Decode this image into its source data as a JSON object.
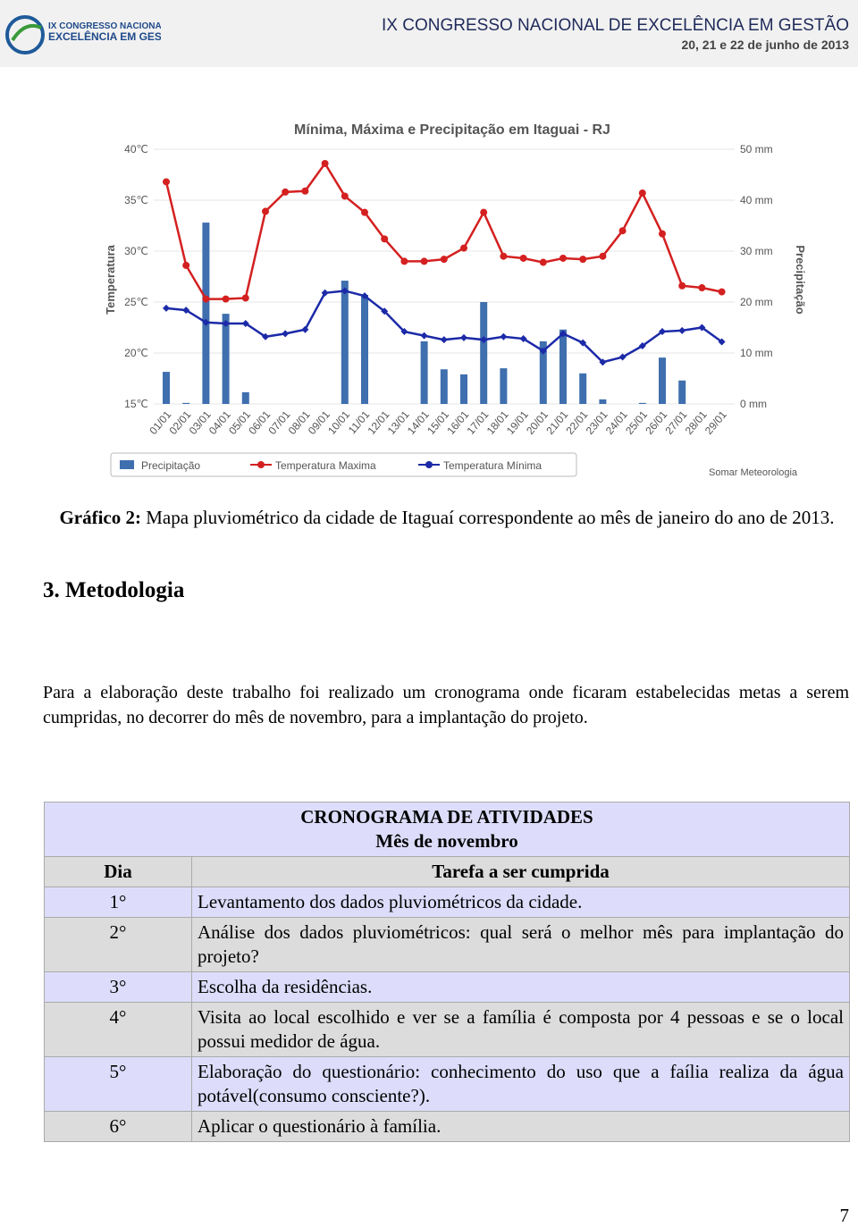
{
  "header": {
    "logo_lines": [
      "IX CONGRESSO NACIONAL DE",
      "EXCELÊNCIA EM GESTÃO"
    ],
    "title": "IX CONGRESSO NACIONAL DE EXCELÊNCIA EM GESTÃO",
    "date": "20, 21 e 22 de junho de 2013"
  },
  "chart_data": {
    "type": "bar-line",
    "title": "Mínima, Máxima e Precipitação em Itaguai - RJ",
    "y_label": "Temperatura",
    "y2_label": "Precipitação",
    "credit": "Somar Meteorologia",
    "categories": [
      "01/01",
      "02/01",
      "03/01",
      "04/01",
      "05/01",
      "06/01",
      "07/01",
      "08/01",
      "09/01",
      "10/01",
      "11/01",
      "12/01",
      "13/01",
      "14/01",
      "15/01",
      "16/01",
      "17/01",
      "18/01",
      "19/01",
      "20/01",
      "21/01",
      "22/01",
      "23/01",
      "24/01",
      "25/01",
      "26/01",
      "27/01",
      "28/01",
      "29/01"
    ],
    "series": [
      {
        "name": "Precipitação",
        "type": "bar",
        "axis": "y2",
        "color": "#3f6fae",
        "values": [
          6.3,
          0.2,
          35.6,
          17.7,
          2.3,
          0,
          0,
          0,
          0,
          24.2,
          21.4,
          0,
          0,
          12.3,
          6.8,
          5.8,
          20,
          7,
          0,
          12.3,
          14.6,
          6,
          0.9,
          0,
          0.2,
          9.1,
          4.6,
          0,
          0
        ]
      },
      {
        "name": "Temperatura Maxima",
        "type": "line",
        "color": "#d42020",
        "values": [
          36.8,
          28.6,
          25.3,
          25.3,
          25.4,
          33.9,
          35.8,
          35.9,
          38.6,
          35.4,
          33.8,
          31.2,
          29,
          29,
          29.2,
          30.3,
          33.8,
          29.5,
          29.3,
          28.9,
          29.3,
          29.2,
          29.5,
          32,
          35.7,
          31.7,
          26.6,
          26.4,
          26
        ]
      },
      {
        "name": "Temperatura Mínima",
        "type": "line",
        "color": "#1c2aa8",
        "values": [
          24.4,
          24.2,
          23,
          22.9,
          22.9,
          21.6,
          21.9,
          22.3,
          25.9,
          26.1,
          25.6,
          24.1,
          22.1,
          21.7,
          21.3,
          21.5,
          21.3,
          21.6,
          21.4,
          20.2,
          21.9,
          21,
          19.1,
          19.6,
          20.7,
          22.1,
          22.2,
          22.5,
          21.1
        ]
      }
    ],
    "ylim": [
      15,
      40
    ],
    "yticks": [
      {
        "value": 15,
        "label": "15℃"
      },
      {
        "value": 20,
        "label": "20℃"
      },
      {
        "value": 25,
        "label": "25℃"
      },
      {
        "value": 30,
        "label": "30℃"
      },
      {
        "value": 35,
        "label": "35℃"
      },
      {
        "value": 40,
        "label": "40℃"
      }
    ],
    "y2lim": [
      0,
      50
    ],
    "y2ticks": [
      {
        "value": 0,
        "label": "0 mm"
      },
      {
        "value": 10,
        "label": "10 mm"
      },
      {
        "value": 20,
        "label": "20 mm"
      },
      {
        "value": 30,
        "label": "30 mm"
      },
      {
        "value": 40,
        "label": "40 mm"
      },
      {
        "value": 50,
        "label": "50 mm"
      }
    ],
    "grid": true,
    "legend": "bottom"
  },
  "caption": {
    "label": "Gráfico 2:",
    "text": "Mapa pluviométrico da cidade de Itaguaí correspondente ao mês de janeiro do ano de 2013."
  },
  "section": {
    "heading": "3. Metodologia",
    "paragraph": "Para a elaboração deste trabalho foi realizado um cronograma onde ficaram estabelecidas metas a serem cumpridas, no decorrer do mês de novembro, para a implantação do projeto."
  },
  "table": {
    "title": "CRONOGRAMA DE ATIVIDADES",
    "subtitle": "Mês de novembro",
    "header": [
      "Dia",
      "Tarefa a ser cumprida"
    ],
    "rows": [
      [
        "1°",
        "Levantamento dos dados pluviométricos da cidade."
      ],
      [
        "2°",
        "Análise dos dados pluviométricos: qual será o melhor mês para implantação do projeto?"
      ],
      [
        "3°",
        "Escolha da residências."
      ],
      [
        "4°",
        "Visita ao local escolhido e ver se a família é composta por 4 pessoas e se o local possui medidor de água."
      ],
      [
        "5°",
        "Elaboração do questionário: conhecimento do uso que a faília realiza da água potável(consumo consciente?)."
      ],
      [
        "6°",
        "Aplicar o questionário à família."
      ]
    ]
  },
  "page_number": "7"
}
